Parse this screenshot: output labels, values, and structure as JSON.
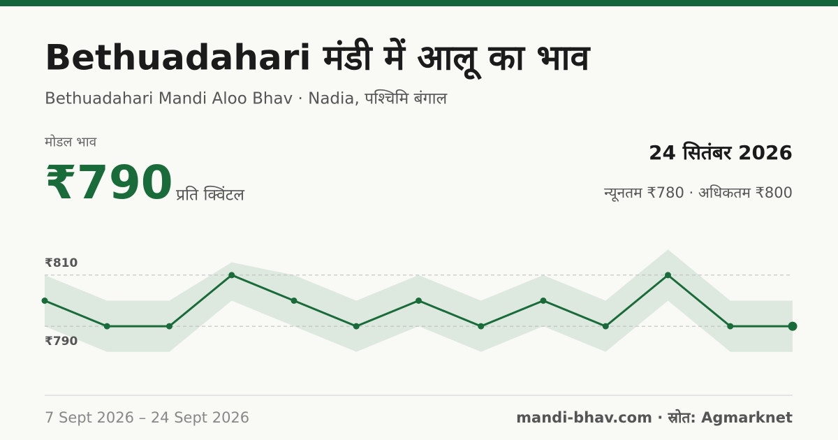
{
  "header": {
    "title": "Bethuadahari मंडी में आलू का भाव",
    "subtitle": "Bethuadahari Mandi Aloo Bhav · Nadia, पश्चिमि बंगाल",
    "modal_label": "मोडल भाव",
    "modal_price": "₹790",
    "unit": "प्रति क्विंटल",
    "date": "24 सितंबर 2026",
    "range": "न्यूनतम ₹780 · अधिकतम ₹800"
  },
  "chart_data": {
    "type": "line",
    "color": "#1a6b3a",
    "band_color": "#dde9df",
    "values": [
      800,
      790,
      790,
      810,
      800,
      790,
      800,
      790,
      800,
      790,
      810,
      790,
      790
    ],
    "band_max": [
      810,
      800,
      800,
      815,
      810,
      800,
      810,
      800,
      810,
      800,
      820,
      800,
      800
    ],
    "band_min": [
      790,
      780,
      780,
      800,
      790,
      780,
      790,
      780,
      790,
      780,
      800,
      780,
      780
    ],
    "ylim": [
      775,
      825
    ],
    "yticks": [
      {
        "value": 790,
        "label": "₹790"
      },
      {
        "value": 810,
        "label": "₹810"
      }
    ],
    "grid": true
  },
  "footer": {
    "period": "7 Sept 2026 – 24 Sept 2026",
    "source": "mandi-bhav.com · स्रोत: Agmarknet"
  }
}
